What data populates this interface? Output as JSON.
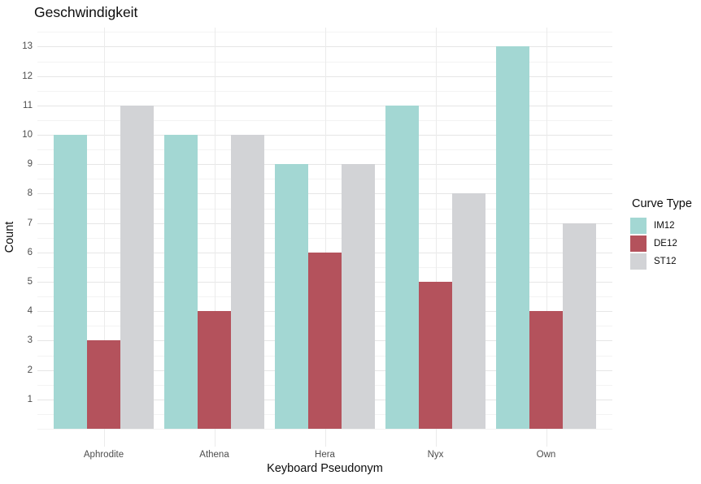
{
  "chart_data": {
    "type": "bar",
    "title": "Geschwindigkeit",
    "xlabel": "Keyboard Pseudonym",
    "ylabel": "Count",
    "categories": [
      "Aphrodite",
      "Athena",
      "Hera",
      "Nyx",
      "Own"
    ],
    "series": [
      {
        "name": "IM12",
        "color": "#a3d7d3",
        "values": [
          10,
          10,
          9,
          11,
          13
        ]
      },
      {
        "name": "DE12",
        "color": "#b4525c",
        "values": [
          3,
          4,
          6,
          5,
          4
        ]
      },
      {
        "name": "ST12",
        "color": "#d2d3d6",
        "values": [
          11,
          10,
          9,
          8,
          7
        ]
      }
    ],
    "y_ticks": [
      1,
      2,
      3,
      4,
      5,
      6,
      7,
      8,
      9,
      10,
      11,
      12,
      13
    ],
    "ylim": [
      -0.62,
      13.65
    ],
    "minor_grid_step": 0.5,
    "grid": true,
    "legend_title": "Curve Type",
    "legend_position": "right",
    "colors": {
      "background": "#ffffff",
      "major_gridline": "#e6e6e6",
      "minor_gridline": "#f3f3f3",
      "vertical_gridline": "#ebebeb",
      "tick_label": "#4d4d4d",
      "title_text": "#0d0d0d"
    }
  }
}
